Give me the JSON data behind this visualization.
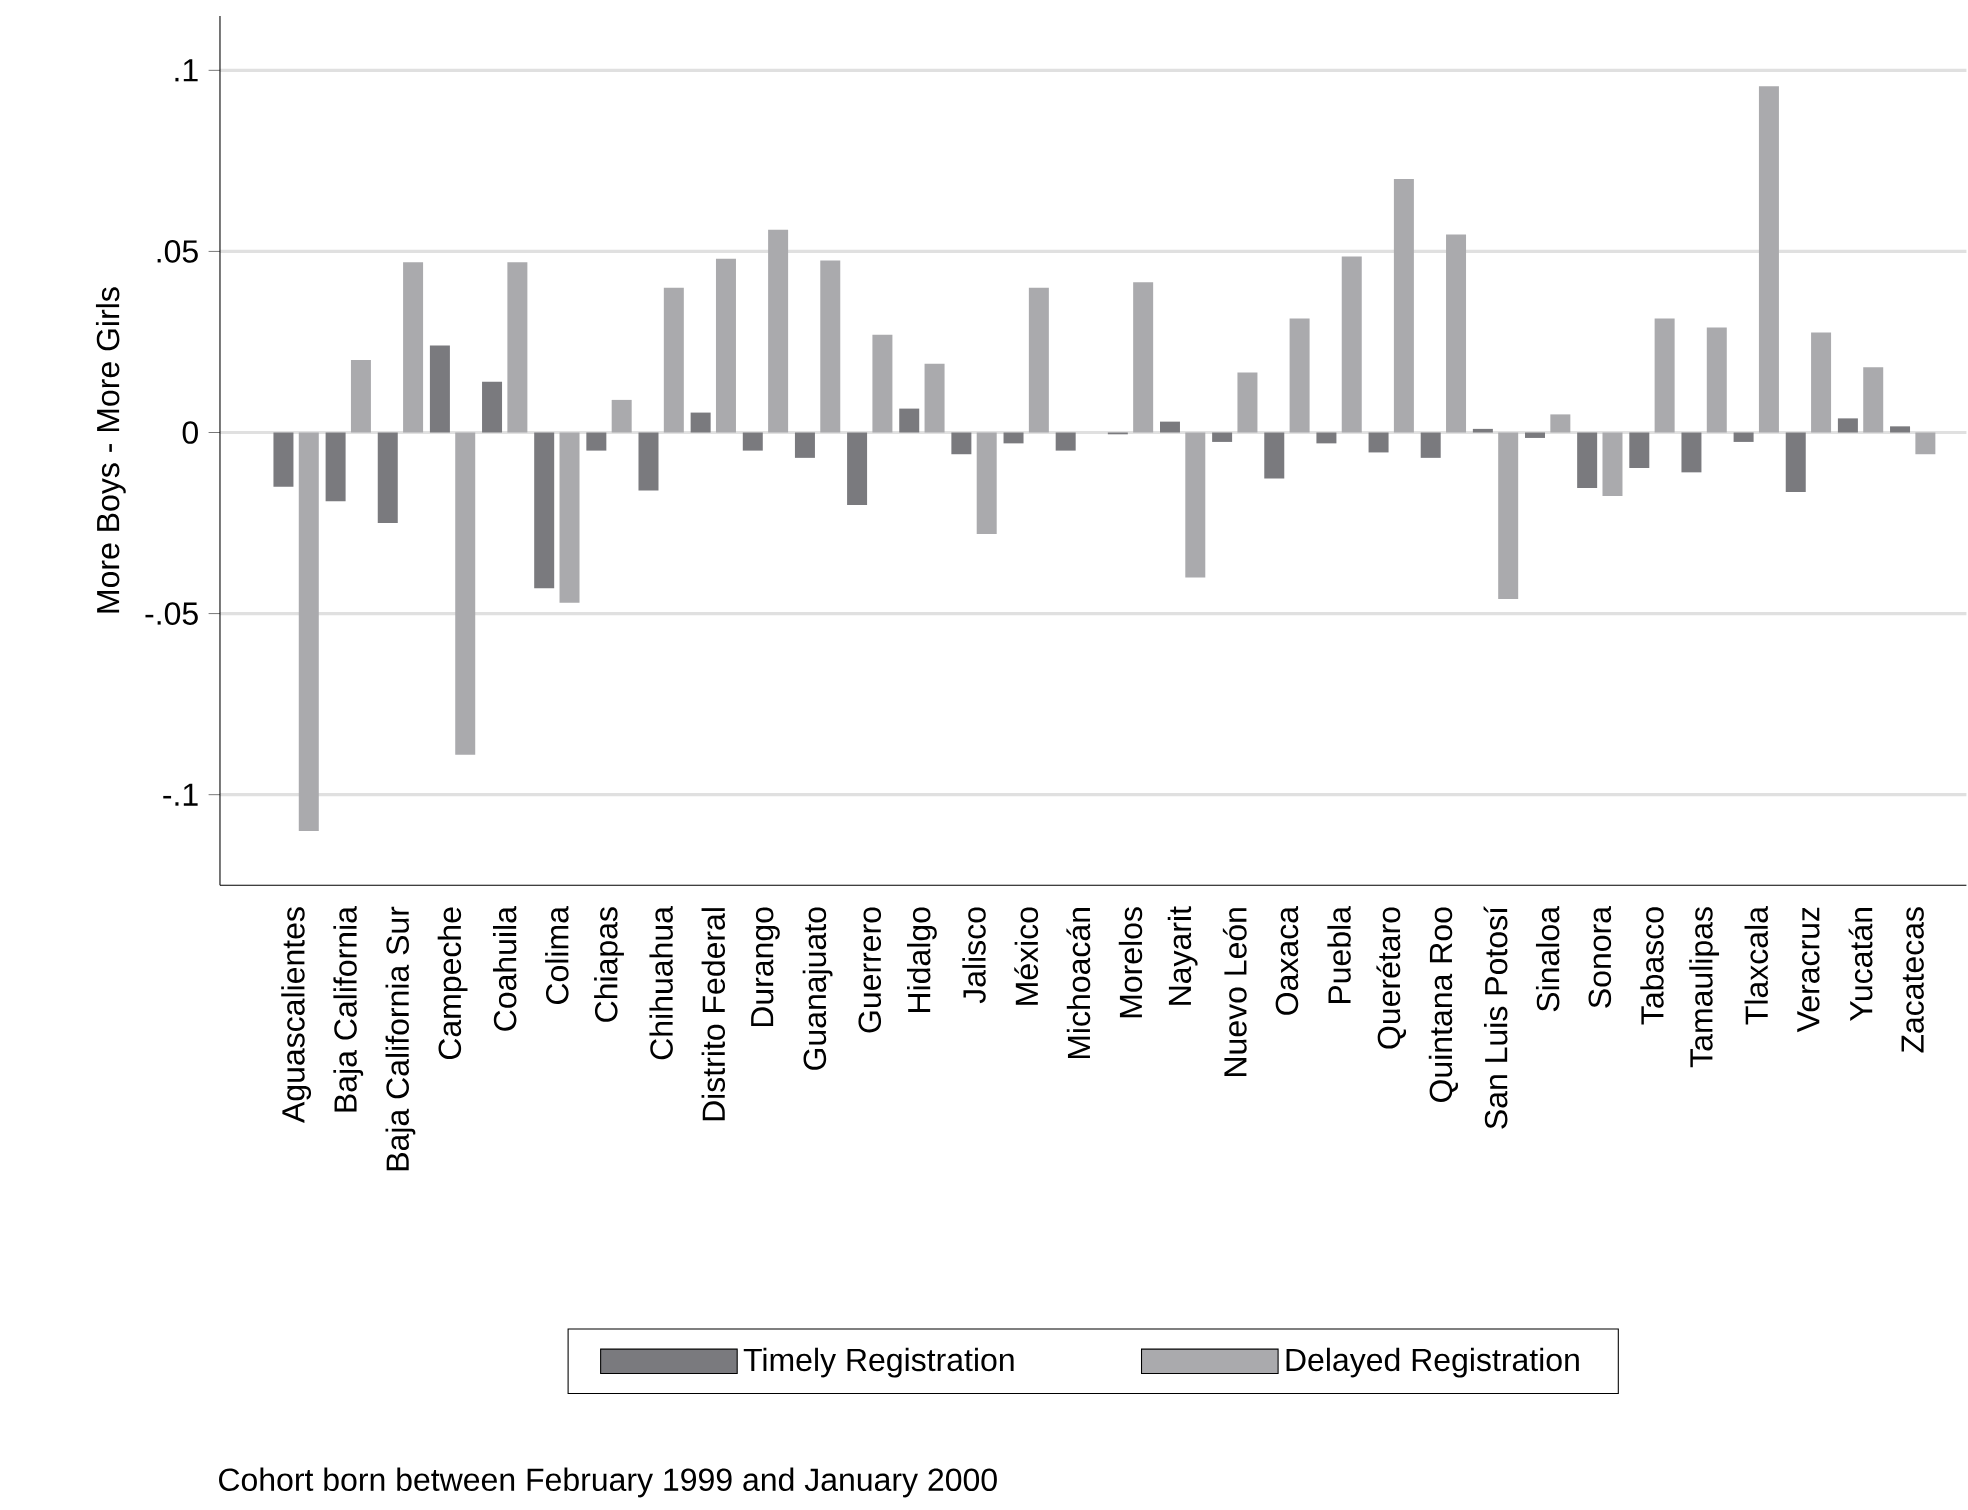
{
  "chart_data": {
    "type": "bar",
    "categories": [
      "Aguascalientes",
      "Baja California",
      "Baja California Sur",
      "Campeche",
      "Coahuila",
      "Colima",
      "Chiapas",
      "Chihuahua",
      "Distrito Federal",
      "Durango",
      "Guanajuato",
      "Guerrero",
      "Hidalgo",
      "Jalisco",
      "México",
      "Michoacán",
      "Morelos",
      "Nayarit",
      "Nuevo León",
      "Oaxaca",
      "Puebla",
      "Querétaro",
      "Quintana Roo",
      "San Luis Potosí",
      "Sinaloa",
      "Sonora",
      "Tabasco",
      "Tamaulipas",
      "Tlaxcala",
      "Veracruz",
      "Yucatán",
      "Zacatecas"
    ],
    "series": [
      {
        "name": "Timely Registration",
        "color": "#7a7a7e",
        "values": [
          -0.015,
          -0.019,
          -0.025,
          0.024,
          0.014,
          -0.043,
          -0.005,
          -0.016,
          0.0055,
          -0.005,
          -0.007,
          -0.02,
          0.0066,
          -0.006,
          -0.003,
          -0.005,
          -0.0005,
          0.003,
          -0.0026,
          -0.0127,
          -0.003,
          -0.0055,
          -0.007,
          0.001,
          -0.0015,
          -0.0153,
          -0.0098,
          -0.011,
          -0.0026,
          -0.0164,
          0.0039,
          0.0017
        ]
      },
      {
        "name": "Delayed Registration",
        "color": "#aaaaad",
        "values": [
          -0.11,
          0.02,
          0.047,
          -0.089,
          0.047,
          -0.047,
          0.009,
          0.04,
          0.048,
          0.056,
          0.0475,
          0.027,
          0.019,
          -0.028,
          0.04,
          null,
          0.0415,
          -0.04,
          0.0166,
          0.0315,
          0.0486,
          0.07,
          0.0547,
          -0.046,
          0.005,
          -0.0175,
          0.0315,
          0.029,
          0.0956,
          0.0276,
          0.018,
          -0.006
        ]
      }
    ],
    "ylabel": "More Boys - More Girls",
    "ylim": [
      -0.125,
      0.115
    ],
    "yticks": [
      {
        "value": -0.1,
        "label": "-.1"
      },
      {
        "value": -0.05,
        "label": "-.05"
      },
      {
        "value": 0,
        "label": "0"
      },
      {
        "value": 0.05,
        "label": ".05"
      },
      {
        "value": 0.1,
        "label": ".1"
      }
    ],
    "grid": "y",
    "legend": "bottom",
    "annotations": [
      "Cohort born between February 1999 and January 2000"
    ]
  }
}
